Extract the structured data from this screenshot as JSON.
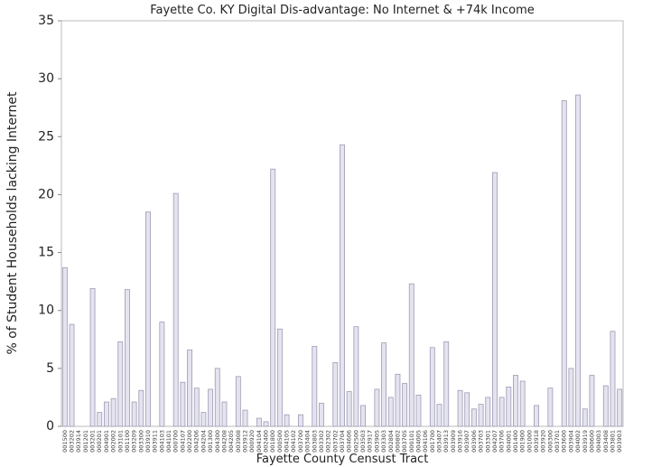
{
  "chart_data": {
    "type": "bar",
    "title": "Fayette Co. KY Digital Dis-advantage: No Internet & +74k Income",
    "y_label": "% of Student Households lacking Internet",
    "x_label": "Fayette County Censust Tract",
    "categories": [
      "001500",
      "003202",
      "003914",
      "001201",
      "003201",
      "000201",
      "004901",
      "002002",
      "003101",
      "001100",
      "003209",
      "003300",
      "003910",
      "003911",
      "004103",
      "004101",
      "000700",
      "004107",
      "002200",
      "004206",
      "004204",
      "001300",
      "004300",
      "004208",
      "004205",
      "003908",
      "003912",
      "000920",
      "004104",
      "002400",
      "001800",
      "000500",
      "004105",
      "004102",
      "003700",
      "003404",
      "003803",
      "003302",
      "002302",
      "003702",
      "003704",
      "004606",
      "002500",
      "003503",
      "003917",
      "003905",
      "003303",
      "002804",
      "000802",
      "003705",
      "000101",
      "004005",
      "004106",
      "001700",
      "003407",
      "003913",
      "003909",
      "003916",
      "003907",
      "003906",
      "003703",
      "003301",
      "004207",
      "003706",
      "004001",
      "001400",
      "001900",
      "001000",
      "003918",
      "003920",
      "000300",
      "003701",
      "003600",
      "003904",
      "004002",
      "003919",
      "000600",
      "004003",
      "003408",
      "003801",
      "003903"
    ],
    "values": [
      13.7,
      8.8,
      0,
      0,
      11.9,
      1.2,
      2.1,
      2.4,
      7.3,
      11.8,
      2.1,
      3.1,
      18.5,
      0,
      9.0,
      0,
      20.1,
      3.8,
      6.6,
      3.3,
      1.2,
      3.2,
      5.0,
      2.1,
      0,
      4.3,
      1.4,
      0,
      0.7,
      0.4,
      22.2,
      8.4,
      1.0,
      0,
      1.0,
      0,
      6.9,
      2.0,
      0,
      5.5,
      24.3,
      3.0,
      8.6,
      1.8,
      0,
      3.2,
      7.2,
      2.5,
      4.5,
      3.7,
      12.3,
      2.7,
      0,
      6.8,
      1.9,
      7.3,
      0,
      3.1,
      2.9,
      1.5,
      1.9,
      2.5,
      21.9,
      2.5,
      3.4,
      4.4,
      3.9,
      0,
      1.8,
      0,
      3.3,
      0,
      28.1,
      5.0,
      28.6,
      1.5,
      4.4,
      0,
      3.5,
      8.2,
      3.2
    ],
    "color": "#e4e3ef",
    "edge_color": "#9d9bb3",
    "ylim": [
      0,
      35
    ],
    "yticks": [
      0,
      5,
      10,
      15,
      20,
      25,
      30,
      35
    ],
    "grid": false
  }
}
